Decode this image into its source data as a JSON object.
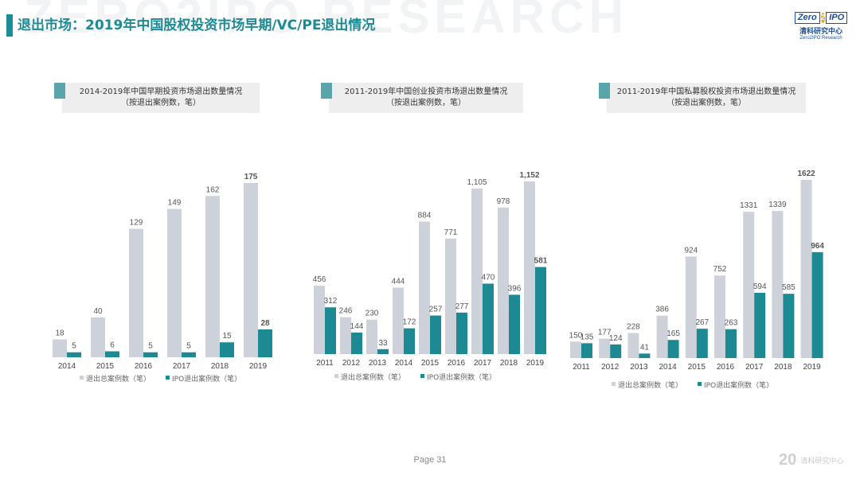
{
  "watermark": "ZERO2IPO RESEARCH",
  "page_title": "退出市场：2019年中国股权投资市场早期/VC/PE退出情况",
  "logo": {
    "mark_left": "Zero",
    "mark_2": "2",
    "mark_right": "IPO",
    "cn": "清科研究中心",
    "en": "Zero2IPO Research"
  },
  "footer": {
    "page": "Page  31",
    "logo_mark": "20",
    "logo_text": "清科研究中心"
  },
  "colors": {
    "total": "#cdd2da",
    "ipo": "#1d8a93",
    "accent": "#1a8d96"
  },
  "chart_data": [
    {
      "type": "bar",
      "title_line1": "2014-2019年中国早期投资市场退出数量情况",
      "title_line2": "（按退出案例数，笔）",
      "categories": [
        "2014",
        "2015",
        "2016",
        "2017",
        "2018",
        "2019"
      ],
      "series": [
        {
          "name": "退出总案例数（笔）",
          "values": [
            18,
            40,
            129,
            149,
            162,
            175
          ],
          "labels": [
            "18",
            "40",
            "129",
            "149",
            "162",
            "175"
          ]
        },
        {
          "name": "IPO退出案例数（笔）",
          "values": [
            5,
            6,
            5,
            5,
            15,
            28
          ],
          "labels": [
            "5",
            "6",
            "5",
            "5",
            "15",
            "28"
          ]
        }
      ],
      "ylim": [
        0,
        175
      ]
    },
    {
      "type": "bar",
      "title_line1": "2011-2019年中国创业投资市场退出数量情况",
      "title_line2": "（按退出案例数，笔）",
      "categories": [
        "2011",
        "2012",
        "2013",
        "2014",
        "2015",
        "2016",
        "2017",
        "2018",
        "2019"
      ],
      "series": [
        {
          "name": "退出总案例数（笔）",
          "values": [
            456,
            246,
            230,
            444,
            884,
            771,
            1105,
            978,
            1152
          ],
          "labels": [
            "456",
            "246",
            "230",
            "444",
            "884",
            "771",
            "1,105",
            "978",
            "1,152"
          ]
        },
        {
          "name": "IPO退出案例数（笔）",
          "values": [
            312,
            144,
            33,
            172,
            257,
            277,
            470,
            396,
            581
          ],
          "labels": [
            "312",
            "144",
            "33",
            "172",
            "257",
            "277",
            "470",
            "396",
            "581"
          ]
        }
      ],
      "ylim": [
        0,
        1152
      ]
    },
    {
      "type": "bar",
      "title_line1": "2011-2019年中国私募股权投资市场退出数量情况",
      "title_line2": "（按退出案例数，笔）",
      "categories": [
        "2011",
        "2012",
        "2013",
        "2014",
        "2015",
        "2016",
        "2017",
        "2018",
        "2019"
      ],
      "series": [
        {
          "name": "退出总案例数（笔）",
          "values": [
            150,
            177,
            228,
            386,
            924,
            752,
            1331,
            1339,
            1622
          ],
          "labels": [
            "150",
            "177",
            "228",
            "386",
            "924",
            "752",
            "1331",
            "1339",
            "1622"
          ]
        },
        {
          "name": "IPO退出案例数（笔）",
          "values": [
            135,
            124,
            41,
            165,
            267,
            263,
            594,
            585,
            964
          ],
          "labels": [
            "135",
            "124",
            "41",
            "165",
            "267",
            "263",
            "594",
            "585",
            "964"
          ]
        }
      ],
      "ylim": [
        0,
        1622
      ]
    }
  ]
}
